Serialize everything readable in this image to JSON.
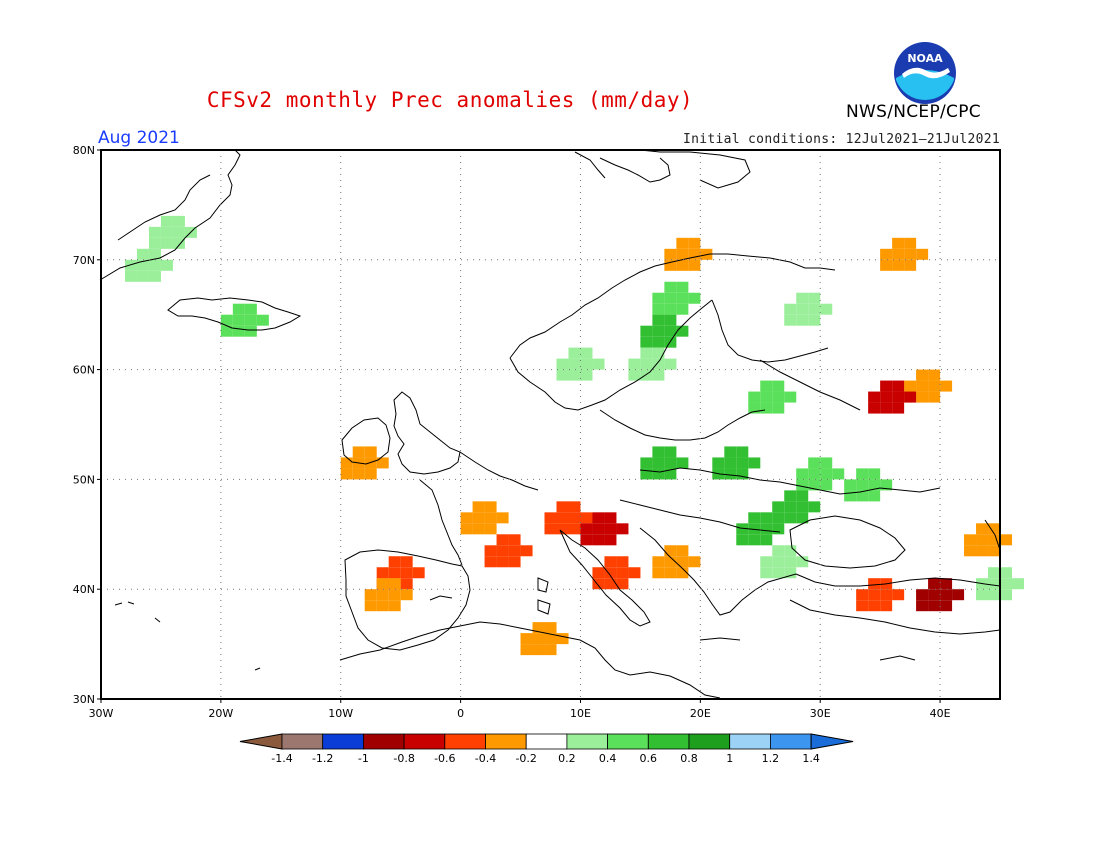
{
  "header": {
    "title": "CFSv2 monthly Prec anomalies (mm/day)",
    "month": "Aug 2021",
    "initial_conditions": "Initial conditions: 12Jul2021–21Jul2021",
    "agency": "NWS/NCEP/CPC",
    "logo_text": "NOAA"
  },
  "map": {
    "region": "Europe",
    "lon_range": [
      -30,
      45
    ],
    "lat_range": [
      30,
      80
    ],
    "lat_labels": [
      "80N",
      "70N",
      "60N",
      "50N",
      "40N",
      "30N"
    ],
    "lon_labels": [
      "30W",
      "20W",
      "10W",
      "0",
      "10E",
      "20E",
      "30E",
      "40E"
    ],
    "gridlines": true
  },
  "colorbar": {
    "levels": [
      "-1.4",
      "-1.2",
      "-1",
      "-0.8",
      "-0.6",
      "-0.4",
      "-0.2",
      "0.2",
      "0.4",
      "0.6",
      "0.8",
      "1",
      "1.2",
      "1.4"
    ],
    "colors": [
      "#8b5a3c",
      "#9c7770",
      "#0a3cd8",
      "#a00000",
      "#c80000",
      "#ff4000",
      "#ff9900",
      "#ffffff",
      "#9bef9b",
      "#5ae05a",
      "#32c032",
      "#1ea01e",
      "#9cd2f5",
      "#3c96f0",
      "#1a6cd8"
    ]
  },
  "anomaly_cells": {
    "note_units": "mm/day",
    "positive": [
      {
        "lon": -25,
        "lat": 73,
        "level": 0.3
      },
      {
        "lon": -27,
        "lat": 70,
        "level": 0.3
      },
      {
        "lon": -19,
        "lat": 65,
        "level": 0.5
      },
      {
        "lon": 17,
        "lat": 67,
        "level": 0.4
      },
      {
        "lon": 16,
        "lat": 64,
        "level": 0.6
      },
      {
        "lon": 15,
        "lat": 61,
        "level": 0.3
      },
      {
        "lon": 28,
        "lat": 66,
        "level": 0.3
      },
      {
        "lon": 9,
        "lat": 61,
        "level": 0.3
      },
      {
        "lon": 25,
        "lat": 58,
        "level": 0.4
      },
      {
        "lon": 16,
        "lat": 52,
        "level": 0.6
      },
      {
        "lon": 22,
        "lat": 52,
        "level": 0.7
      },
      {
        "lon": 29,
        "lat": 51,
        "level": 0.5
      },
      {
        "lon": 33,
        "lat": 50,
        "level": 0.4
      },
      {
        "lon": 27,
        "lat": 48,
        "level": 0.6
      },
      {
        "lon": 24,
        "lat": 46,
        "level": 0.7
      },
      {
        "lon": 26,
        "lat": 43,
        "level": 0.3
      },
      {
        "lon": 44,
        "lat": 41,
        "level": 0.3
      }
    ],
    "negative": [
      {
        "lon": 36,
        "lat": 71,
        "level": -0.3
      },
      {
        "lon": 18,
        "lat": 71,
        "level": -0.3
      },
      {
        "lon": 38,
        "lat": 59,
        "level": -0.4
      },
      {
        "lon": 35,
        "lat": 58,
        "level": -0.7
      },
      {
        "lon": -9,
        "lat": 52,
        "level": -0.3
      },
      {
        "lon": 1,
        "lat": 47,
        "level": -0.4
      },
      {
        "lon": 3,
        "lat": 44,
        "level": -0.5
      },
      {
        "lon": 8,
        "lat": 47,
        "level": -0.5
      },
      {
        "lon": 11,
        "lat": 46,
        "level": -0.8
      },
      {
        "lon": 12,
        "lat": 42,
        "level": -0.6
      },
      {
        "lon": -6,
        "lat": 42,
        "level": -0.6
      },
      {
        "lon": -7,
        "lat": 40,
        "level": -0.3
      },
      {
        "lon": 6,
        "lat": 36,
        "level": -0.3
      },
      {
        "lon": 17,
        "lat": 43,
        "level": -0.4
      },
      {
        "lon": 34,
        "lat": 40,
        "level": -0.5
      },
      {
        "lon": 39,
        "lat": 40,
        "level": -0.9
      },
      {
        "lon": 43,
        "lat": 45,
        "level": -0.3
      }
    ]
  }
}
